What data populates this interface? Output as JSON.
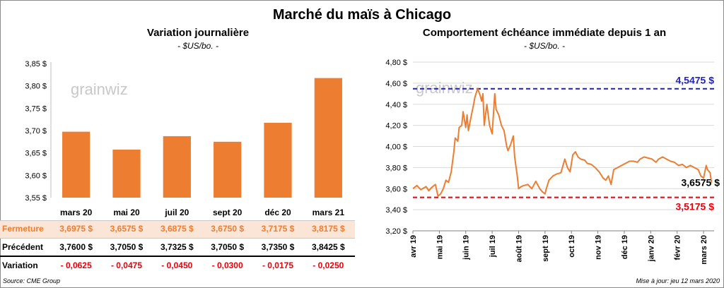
{
  "title": "Marché du maïs à Chicago",
  "source": "Source: CME Group",
  "updated": "Mise à jour: jeu 12 mars 2020",
  "colors": {
    "orange": "#ED7D31",
    "blue": "#1F1FBF",
    "red": "#E8000B",
    "row_bg": "#FBE5D6",
    "grid": "#D9D9D9"
  },
  "chart_data": [
    {
      "type": "bar",
      "title": "Variation  journalière",
      "subtitle": "- $US/bo. -",
      "watermark": "grainwiz",
      "categories": [
        "mars 20",
        "mai 20",
        "juil 20",
        "sept 20",
        "déc 20",
        "mars 21"
      ],
      "values": [
        3.6975,
        3.6575,
        3.6875,
        3.675,
        3.7175,
        3.8175
      ],
      "ylim": [
        3.55,
        3.85
      ],
      "yticks": [
        "3,55 $",
        "3,60 $",
        "3,65 $",
        "3,70 $",
        "3,75 $",
        "3,80 $",
        "3,85 $"
      ],
      "ytick_values": [
        3.55,
        3.6,
        3.65,
        3.7,
        3.75,
        3.8,
        3.85
      ],
      "table": {
        "rows": [
          {
            "label": "Fermeture",
            "cells": [
              "3,6975  $",
              "3,6575  $",
              "3,6875  $",
              "3,6750  $",
              "3,7175  $",
              "3,8175  $"
            ]
          },
          {
            "label": "Précédent",
            "cells": [
              "3,7600  $",
              "3,7050  $",
              "3,7325  $",
              "3,7050  $",
              "3,7350  $",
              "3,8425  $"
            ]
          },
          {
            "label": "Variation",
            "cells": [
              "- 0,0625",
              "- 0,0475",
              "- 0,0450",
              "- 0,0300",
              "- 0,0175",
              "- 0,0250"
            ]
          }
        ]
      }
    },
    {
      "type": "line",
      "title": "Comportement  échéance immédiate  depuis 1 an",
      "subtitle": "- $US/bo. -",
      "watermark": "grainwiz",
      "ylim": [
        3.2,
        4.8
      ],
      "yticks": [
        "3,20 $",
        "3,40 $",
        "3,60 $",
        "3,80 $",
        "4,00 $",
        "4,20 $",
        "4,40 $",
        "4,60 $",
        "4,80 $"
      ],
      "ytick_values": [
        3.2,
        3.4,
        3.6,
        3.8,
        4.0,
        4.2,
        4.4,
        4.6,
        4.8
      ],
      "x_labels": [
        "avr 19",
        "mai 19",
        "juin 19",
        "juil 19",
        "août 19",
        "sept 19",
        "oct 19",
        "nov 19",
        "déc 19",
        "janv 20",
        "févr 20",
        "mars 20"
      ],
      "x_label_positions": [
        0,
        1,
        2,
        3,
        4,
        5,
        6,
        7,
        8,
        9,
        10,
        11
      ],
      "x_range": [
        0,
        11.4
      ],
      "series": [
        {
          "values": [
            [
              0,
              3.6
            ],
            [
              0.15,
              3.63
            ],
            [
              0.3,
              3.59
            ],
            [
              0.5,
              3.62
            ],
            [
              0.6,
              3.58
            ],
            [
              0.7,
              3.61
            ],
            [
              0.85,
              3.64
            ],
            [
              0.95,
              3.53
            ],
            [
              1.05,
              3.55
            ],
            [
              1.15,
              3.6
            ],
            [
              1.25,
              3.68
            ],
            [
              1.35,
              3.66
            ],
            [
              1.45,
              3.76
            ],
            [
              1.55,
              3.95
            ],
            [
              1.6,
              4.08
            ],
            [
              1.7,
              4.05
            ],
            [
              1.75,
              4.18
            ],
            [
              1.85,
              4.2
            ],
            [
              1.9,
              4.33
            ],
            [
              2.0,
              4.18
            ],
            [
              2.05,
              4.3
            ],
            [
              2.1,
              4.15
            ],
            [
              2.2,
              4.28
            ],
            [
              2.3,
              4.4
            ],
            [
              2.35,
              4.47
            ],
            [
              2.45,
              4.55
            ],
            [
              2.55,
              4.48
            ],
            [
              2.6,
              4.43
            ],
            [
              2.65,
              4.5
            ],
            [
              2.7,
              4.2
            ],
            [
              2.8,
              4.4
            ],
            [
              2.9,
              4.2
            ],
            [
              3.0,
              4.12
            ],
            [
              3.1,
              4.5
            ],
            [
              3.15,
              4.35
            ],
            [
              3.25,
              4.3
            ],
            [
              3.35,
              4.2
            ],
            [
              3.45,
              4.15
            ],
            [
              3.55,
              4.0
            ],
            [
              3.6,
              3.96
            ],
            [
              3.7,
              4.02
            ],
            [
              3.8,
              4.1
            ],
            [
              3.85,
              3.9
            ],
            [
              3.95,
              3.72
            ],
            [
              4.0,
              3.6
            ],
            [
              4.1,
              3.62
            ],
            [
              4.2,
              3.63
            ],
            [
              4.35,
              3.64
            ],
            [
              4.5,
              3.6
            ],
            [
              4.65,
              3.67
            ],
            [
              4.8,
              3.6
            ],
            [
              4.9,
              3.57
            ],
            [
              5.0,
              3.55
            ],
            [
              5.05,
              3.6
            ],
            [
              5.15,
              3.68
            ],
            [
              5.3,
              3.72
            ],
            [
              5.45,
              3.74
            ],
            [
              5.6,
              3.75
            ],
            [
              5.75,
              3.88
            ],
            [
              5.85,
              3.8
            ],
            [
              5.95,
              3.76
            ],
            [
              6.05,
              3.92
            ],
            [
              6.15,
              3.95
            ],
            [
              6.25,
              3.9
            ],
            [
              6.35,
              3.88
            ],
            [
              6.5,
              3.87
            ],
            [
              6.6,
              3.84
            ],
            [
              6.75,
              3.83
            ],
            [
              6.9,
              3.8
            ],
            [
              7.05,
              3.76
            ],
            [
              7.2,
              3.7
            ],
            [
              7.3,
              3.68
            ],
            [
              7.4,
              3.72
            ],
            [
              7.5,
              3.64
            ],
            [
              7.6,
              3.78
            ],
            [
              7.75,
              3.8
            ],
            [
              7.9,
              3.82
            ],
            [
              8.05,
              3.84
            ],
            [
              8.2,
              3.86
            ],
            [
              8.35,
              3.86
            ],
            [
              8.5,
              3.85
            ],
            [
              8.6,
              3.88
            ],
            [
              8.75,
              3.9
            ],
            [
              8.9,
              3.89
            ],
            [
              9.05,
              3.88
            ],
            [
              9.2,
              3.85
            ],
            [
              9.3,
              3.88
            ],
            [
              9.45,
              3.9
            ],
            [
              9.6,
              3.88
            ],
            [
              9.75,
              3.86
            ],
            [
              9.9,
              3.85
            ],
            [
              10.05,
              3.82
            ],
            [
              10.2,
              3.83
            ],
            [
              10.35,
              3.8
            ],
            [
              10.5,
              3.82
            ],
            [
              10.65,
              3.8
            ],
            [
              10.8,
              3.78
            ],
            [
              10.9,
              3.72
            ],
            [
              11.0,
              3.7
            ],
            [
              11.1,
              3.82
            ],
            [
              11.15,
              3.78
            ],
            [
              11.25,
              3.75
            ],
            [
              11.3,
              3.6575
            ]
          ]
        }
      ],
      "ref_lines": [
        {
          "value": 4.5475,
          "label": "4,5475 $",
          "color": "#1F1FBF"
        },
        {
          "value": 3.5175,
          "label": "3,5175 $",
          "color": "#E8000B"
        }
      ],
      "last_label": "3,6575 $"
    }
  ]
}
